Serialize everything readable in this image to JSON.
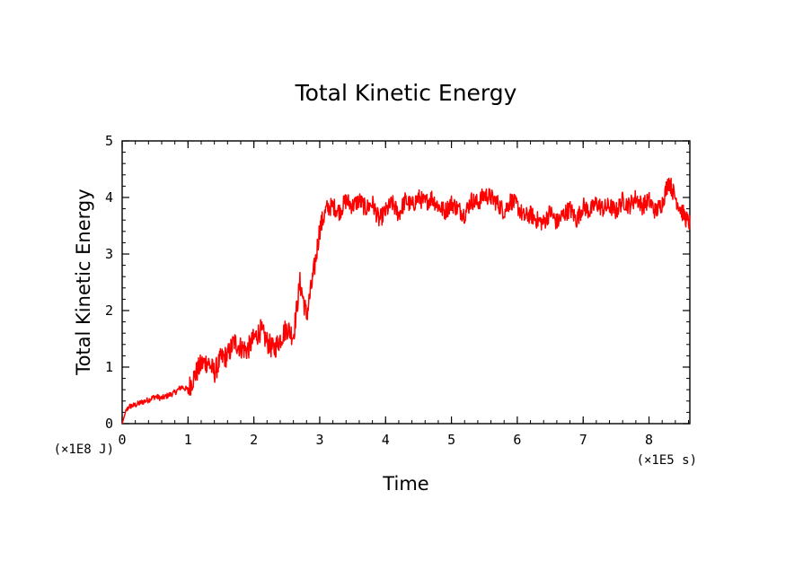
{
  "chart_data": {
    "type": "line",
    "title": "Total Kinetic Energy",
    "xlabel": "Time",
    "ylabel": "Total Kinetic Energy",
    "x_unit_label": "(×1E5 s)",
    "y_unit_label": "(×1E8 J)",
    "xlim": [
      0,
      8.62
    ],
    "ylim": [
      0,
      5
    ],
    "x_ticks": [
      0,
      1,
      2,
      3,
      4,
      5,
      6,
      7,
      8
    ],
    "x_tick_labels": [
      "0",
      "1",
      "2",
      "3",
      "4",
      "5",
      "6",
      "7",
      "8"
    ],
    "y_ticks": [
      0,
      1,
      2,
      3,
      4,
      5
    ],
    "y_tick_labels": [
      "0",
      "1",
      "2",
      "3",
      "4",
      "5"
    ],
    "grid": false,
    "line_color": "#ff0000",
    "series": [
      {
        "name": "Total Kinetic Energy",
        "x": [
          0,
          0.05,
          0.1,
          0.2,
          0.3,
          0.4,
          0.5,
          0.6,
          0.7,
          0.8,
          0.9,
          1.0,
          1.1,
          1.2,
          1.3,
          1.4,
          1.5,
          1.6,
          1.7,
          1.8,
          1.9,
          2.0,
          2.1,
          2.2,
          2.3,
          2.4,
          2.5,
          2.6,
          2.7,
          2.8,
          2.9,
          2.95,
          3.0,
          3.05,
          3.1,
          3.2,
          3.3,
          3.4,
          3.5,
          3.6,
          3.7,
          3.8,
          3.9,
          4.0,
          4.1,
          4.2,
          4.3,
          4.4,
          4.5,
          4.6,
          4.7,
          4.8,
          4.9,
          5.0,
          5.1,
          5.2,
          5.3,
          5.4,
          5.5,
          5.6,
          5.7,
          5.8,
          5.9,
          6.0,
          6.1,
          6.2,
          6.3,
          6.4,
          6.5,
          6.6,
          6.7,
          6.8,
          6.9,
          7.0,
          7.1,
          7.2,
          7.3,
          7.4,
          7.5,
          7.6,
          7.7,
          7.8,
          7.9,
          8.0,
          8.1,
          8.2,
          8.3,
          8.4,
          8.5,
          8.6
        ],
        "values": [
          0.0,
          0.2,
          0.3,
          0.33,
          0.38,
          0.42,
          0.48,
          0.45,
          0.5,
          0.55,
          0.65,
          0.6,
          0.85,
          1.05,
          1.1,
          0.9,
          1.15,
          1.2,
          1.45,
          1.35,
          1.3,
          1.5,
          1.65,
          1.45,
          1.3,
          1.5,
          1.7,
          1.55,
          2.5,
          1.9,
          2.6,
          3.0,
          3.45,
          3.6,
          3.8,
          3.85,
          3.75,
          3.95,
          3.85,
          3.95,
          3.8,
          3.9,
          3.6,
          3.75,
          3.9,
          3.7,
          3.95,
          3.85,
          4.0,
          3.9,
          4.0,
          3.85,
          3.75,
          3.9,
          3.8,
          3.7,
          3.95,
          3.9,
          4.05,
          4.0,
          3.9,
          3.75,
          3.95,
          3.85,
          3.65,
          3.7,
          3.6,
          3.55,
          3.75,
          3.55,
          3.7,
          3.8,
          3.6,
          3.85,
          3.75,
          3.9,
          3.8,
          3.85,
          3.75,
          3.95,
          3.85,
          4.0,
          3.85,
          3.95,
          3.75,
          3.9,
          4.3,
          4.0,
          3.75,
          3.55
        ]
      }
    ]
  }
}
